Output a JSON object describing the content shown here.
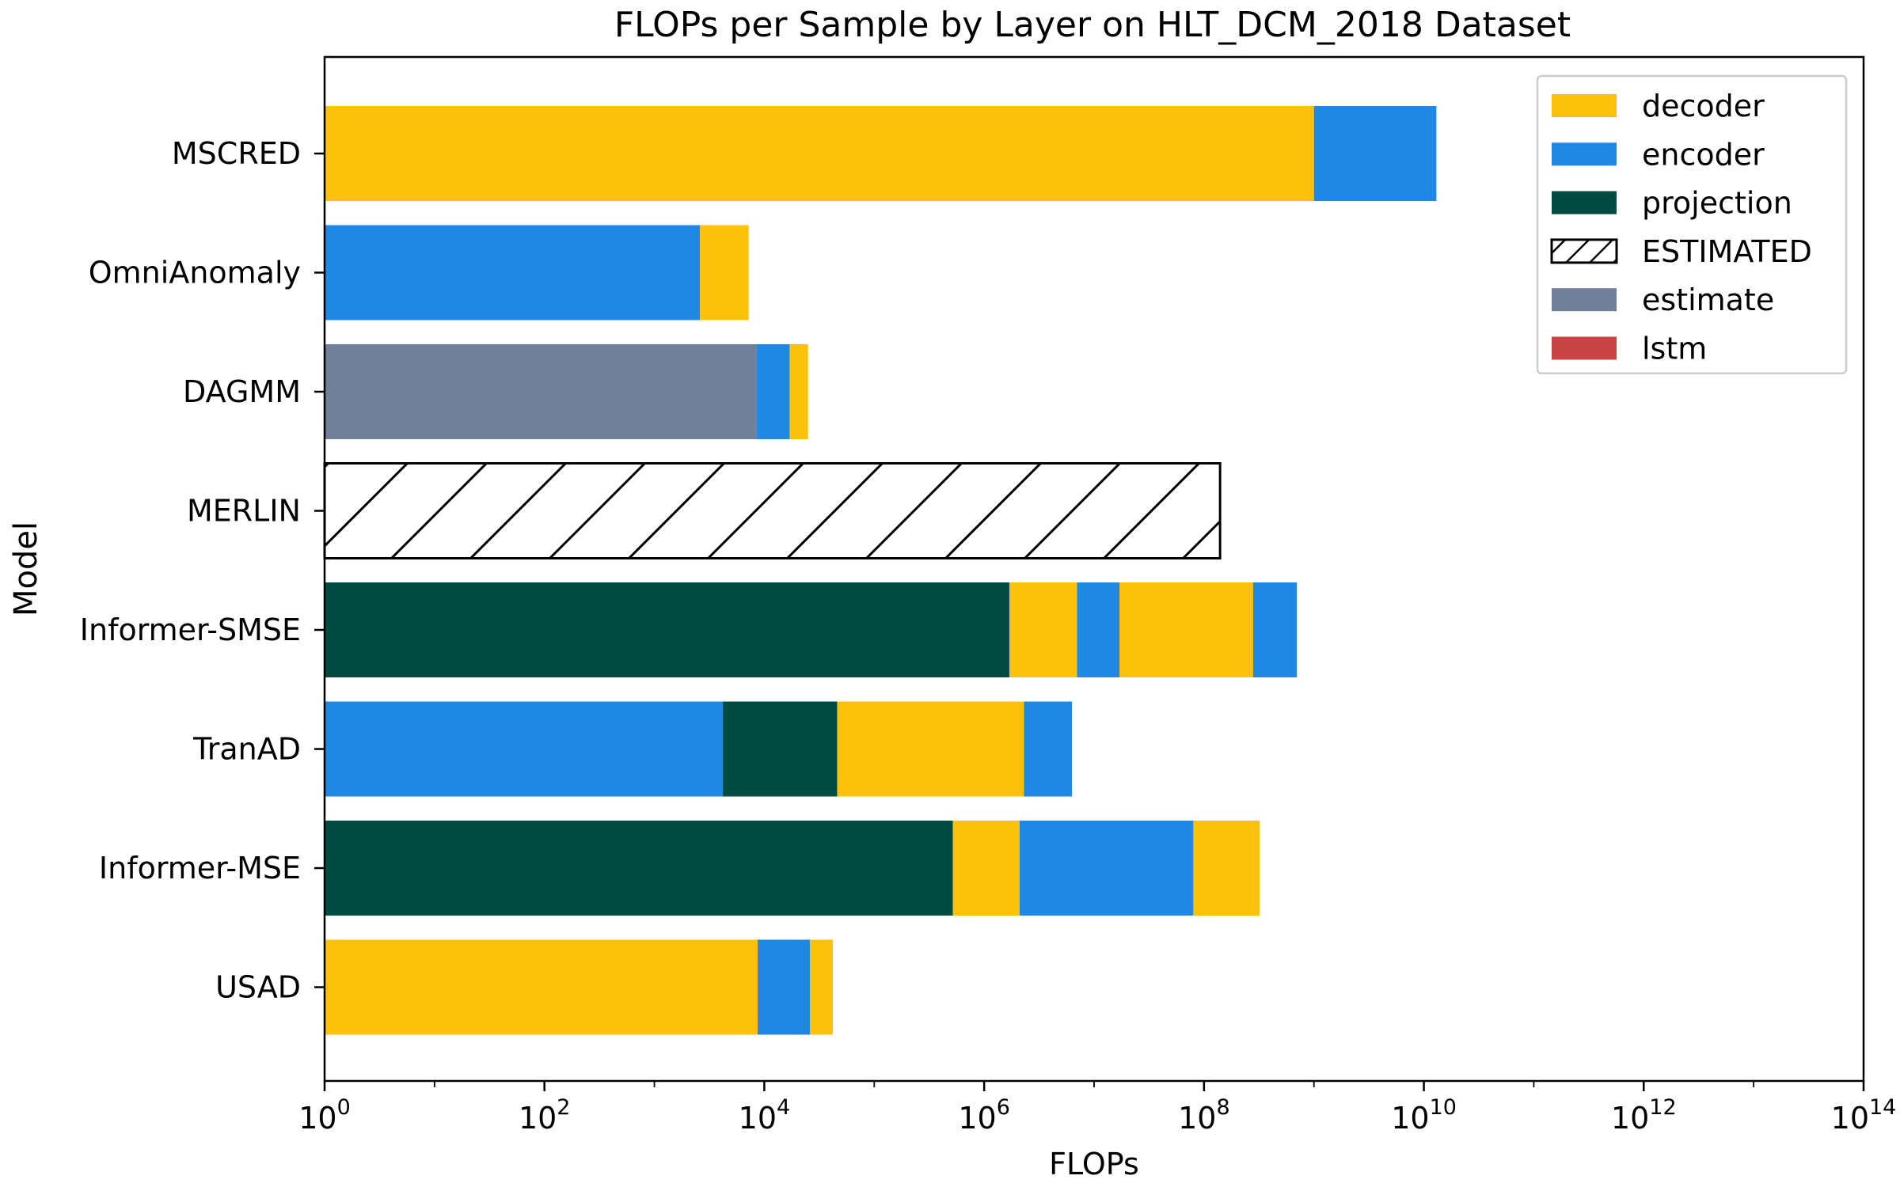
{
  "chart_data": {
    "type": "bar",
    "orientation": "horizontal",
    "stacked": true,
    "x_scale": "log",
    "title": "FLOPs per Sample by Layer on HLT_DCM_2018 Dataset",
    "xlabel": "FLOPs",
    "ylabel": "Model",
    "xlim": [
      1,
      100000000000000
    ],
    "x_ticks": [
      {
        "base": "10",
        "exp": "0"
      },
      {
        "base": "10",
        "exp": "2"
      },
      {
        "base": "10",
        "exp": "4"
      },
      {
        "base": "10",
        "exp": "6"
      },
      {
        "base": "10",
        "exp": "8"
      },
      {
        "base": "10",
        "exp": "10"
      },
      {
        "base": "10",
        "exp": "12"
      },
      {
        "base": "10",
        "exp": "14"
      }
    ],
    "categories": [
      "MSCRED",
      "OmniAnomaly",
      "DAGMM",
      "MERLIN",
      "Informer-SMSE",
      "TranAD",
      "Informer-MSE",
      "USAD"
    ],
    "bars": [
      {
        "model": "MSCRED",
        "segments": [
          {
            "layer": "decoder",
            "end": 1000000000
          },
          {
            "layer": "encoder",
            "end": 13000000000
          }
        ]
      },
      {
        "model": "OmniAnomaly",
        "segments": [
          {
            "layer": "encoder",
            "end": 2600
          },
          {
            "layer": "decoder",
            "end": 7200
          }
        ]
      },
      {
        "model": "DAGMM",
        "segments": [
          {
            "layer": "estimate",
            "end": 8500
          },
          {
            "layer": "encoder",
            "end": 17000
          },
          {
            "layer": "decoder",
            "end": 25000
          }
        ]
      },
      {
        "model": "MERLIN",
        "segments": [
          {
            "layer": "ESTIMATED",
            "end": 140000000
          }
        ]
      },
      {
        "model": "Informer-SMSE",
        "segments": [
          {
            "layer": "projection",
            "end": 1700000
          },
          {
            "layer": "decoder",
            "end": 7000000
          },
          {
            "layer": "encoder",
            "end": 17000000
          },
          {
            "layer": "decoder",
            "end": 280000000
          },
          {
            "layer": "encoder",
            "end": 700000000
          }
        ]
      },
      {
        "model": "TranAD",
        "segments": [
          {
            "layer": "encoder",
            "end": 4200
          },
          {
            "layer": "projection",
            "end": 46000
          },
          {
            "layer": "decoder",
            "end": 2300000
          },
          {
            "layer": "encoder",
            "end": 6300000
          }
        ]
      },
      {
        "model": "Informer-MSE",
        "segments": [
          {
            "layer": "projection",
            "end": 520000
          },
          {
            "layer": "decoder",
            "end": 2100000
          },
          {
            "layer": "encoder",
            "end": 80000000
          },
          {
            "layer": "decoder",
            "end": 320000000
          }
        ]
      },
      {
        "model": "USAD",
        "segments": [
          {
            "layer": "decoder",
            "end": 8700
          },
          {
            "layer": "encoder",
            "end": 26000
          },
          {
            "layer": "decoder",
            "end": 42000
          }
        ]
      }
    ],
    "legend": {
      "placement": "top-right",
      "entries": [
        {
          "label": "decoder",
          "color": "#fcc10b"
        },
        {
          "label": "encoder",
          "color": "#1f88e5"
        },
        {
          "label": "projection",
          "color": "#004c40"
        },
        {
          "label": "ESTIMATED",
          "color": "#ffffff",
          "hatch": true
        },
        {
          "label": "estimate",
          "color": "#708099"
        },
        {
          "label": "lstm",
          "color": "#c94545"
        }
      ]
    },
    "colors": {
      "decoder": "#fcc10b",
      "encoder": "#1f88e5",
      "projection": "#004c40",
      "ESTIMATED": "#ffffff",
      "estimate": "#708099",
      "lstm": "#c94545"
    },
    "grid": false
  }
}
